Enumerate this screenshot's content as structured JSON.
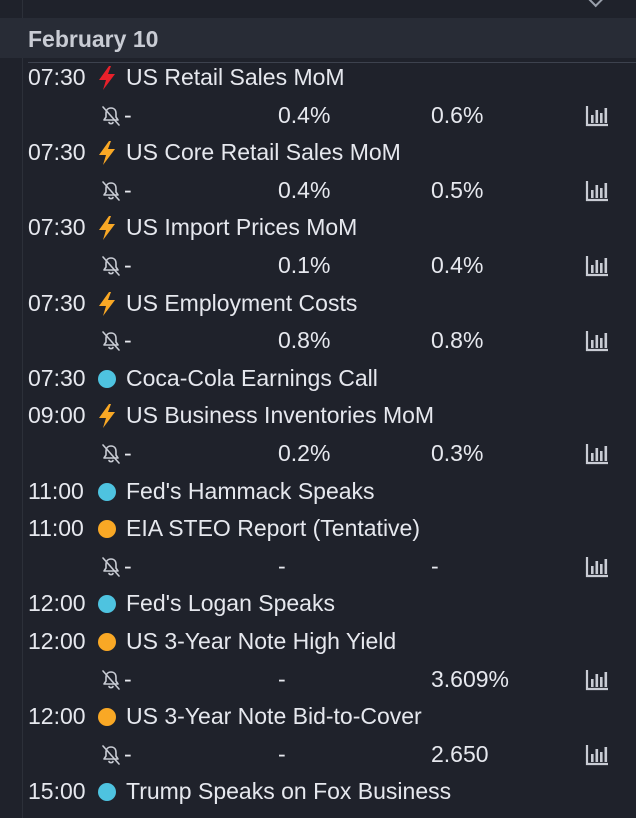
{
  "header": {
    "title": "February 10"
  },
  "colors": {
    "high": "#e8202a",
    "medium": "#f9a825",
    "event": "#4ec3e0",
    "tentative": "#f9a825"
  },
  "icons": {
    "high": "lightning-bolt-icon",
    "medium": "lightning-bolt-icon",
    "event": "circle-dot-icon",
    "alert": "bell-off-icon",
    "chart": "bar-chart-icon"
  },
  "events": [
    {
      "time": "07:30",
      "importance": "high",
      "title": "US Retail Sales MoM",
      "actual": "-",
      "forecast": "0.4%",
      "previous": "0.6%"
    },
    {
      "time": "07:30",
      "importance": "medium",
      "title": "US Core Retail Sales MoM",
      "actual": "-",
      "forecast": "0.4%",
      "previous": "0.5%"
    },
    {
      "time": "07:30",
      "importance": "medium",
      "title": "US Import Prices MoM",
      "actual": "-",
      "forecast": "0.1%",
      "previous": "0.4%"
    },
    {
      "time": "07:30",
      "importance": "medium",
      "title": "US Employment Costs",
      "actual": "-",
      "forecast": "0.8%",
      "previous": "0.8%"
    },
    {
      "time": "07:30",
      "importance": "event",
      "title": "Coca-Cola Earnings Call"
    },
    {
      "time": "09:00",
      "importance": "medium",
      "title": "US Business Inventories MoM",
      "actual": "-",
      "forecast": "0.2%",
      "previous": "0.3%"
    },
    {
      "time": "11:00",
      "importance": "event",
      "title": "Fed's Hammack Speaks"
    },
    {
      "time": "11:00",
      "importance": "tentative",
      "title": "EIA STEO Report (Tentative)",
      "actual": "-",
      "forecast": "-",
      "previous": "-"
    },
    {
      "time": "12:00",
      "importance": "event",
      "title": "Fed's Logan Speaks"
    },
    {
      "time": "12:00",
      "importance": "tentative",
      "title": "US 3-Year Note High Yield",
      "actual": "-",
      "forecast": "-",
      "previous": "3.609%"
    },
    {
      "time": "12:00",
      "importance": "tentative",
      "title": "US 3-Year Note Bid-to-Cover",
      "actual": "-",
      "forecast": "-",
      "previous": "2.650"
    },
    {
      "time": "15:00",
      "importance": "event",
      "title": "Trump Speaks on Fox Business"
    }
  ]
}
